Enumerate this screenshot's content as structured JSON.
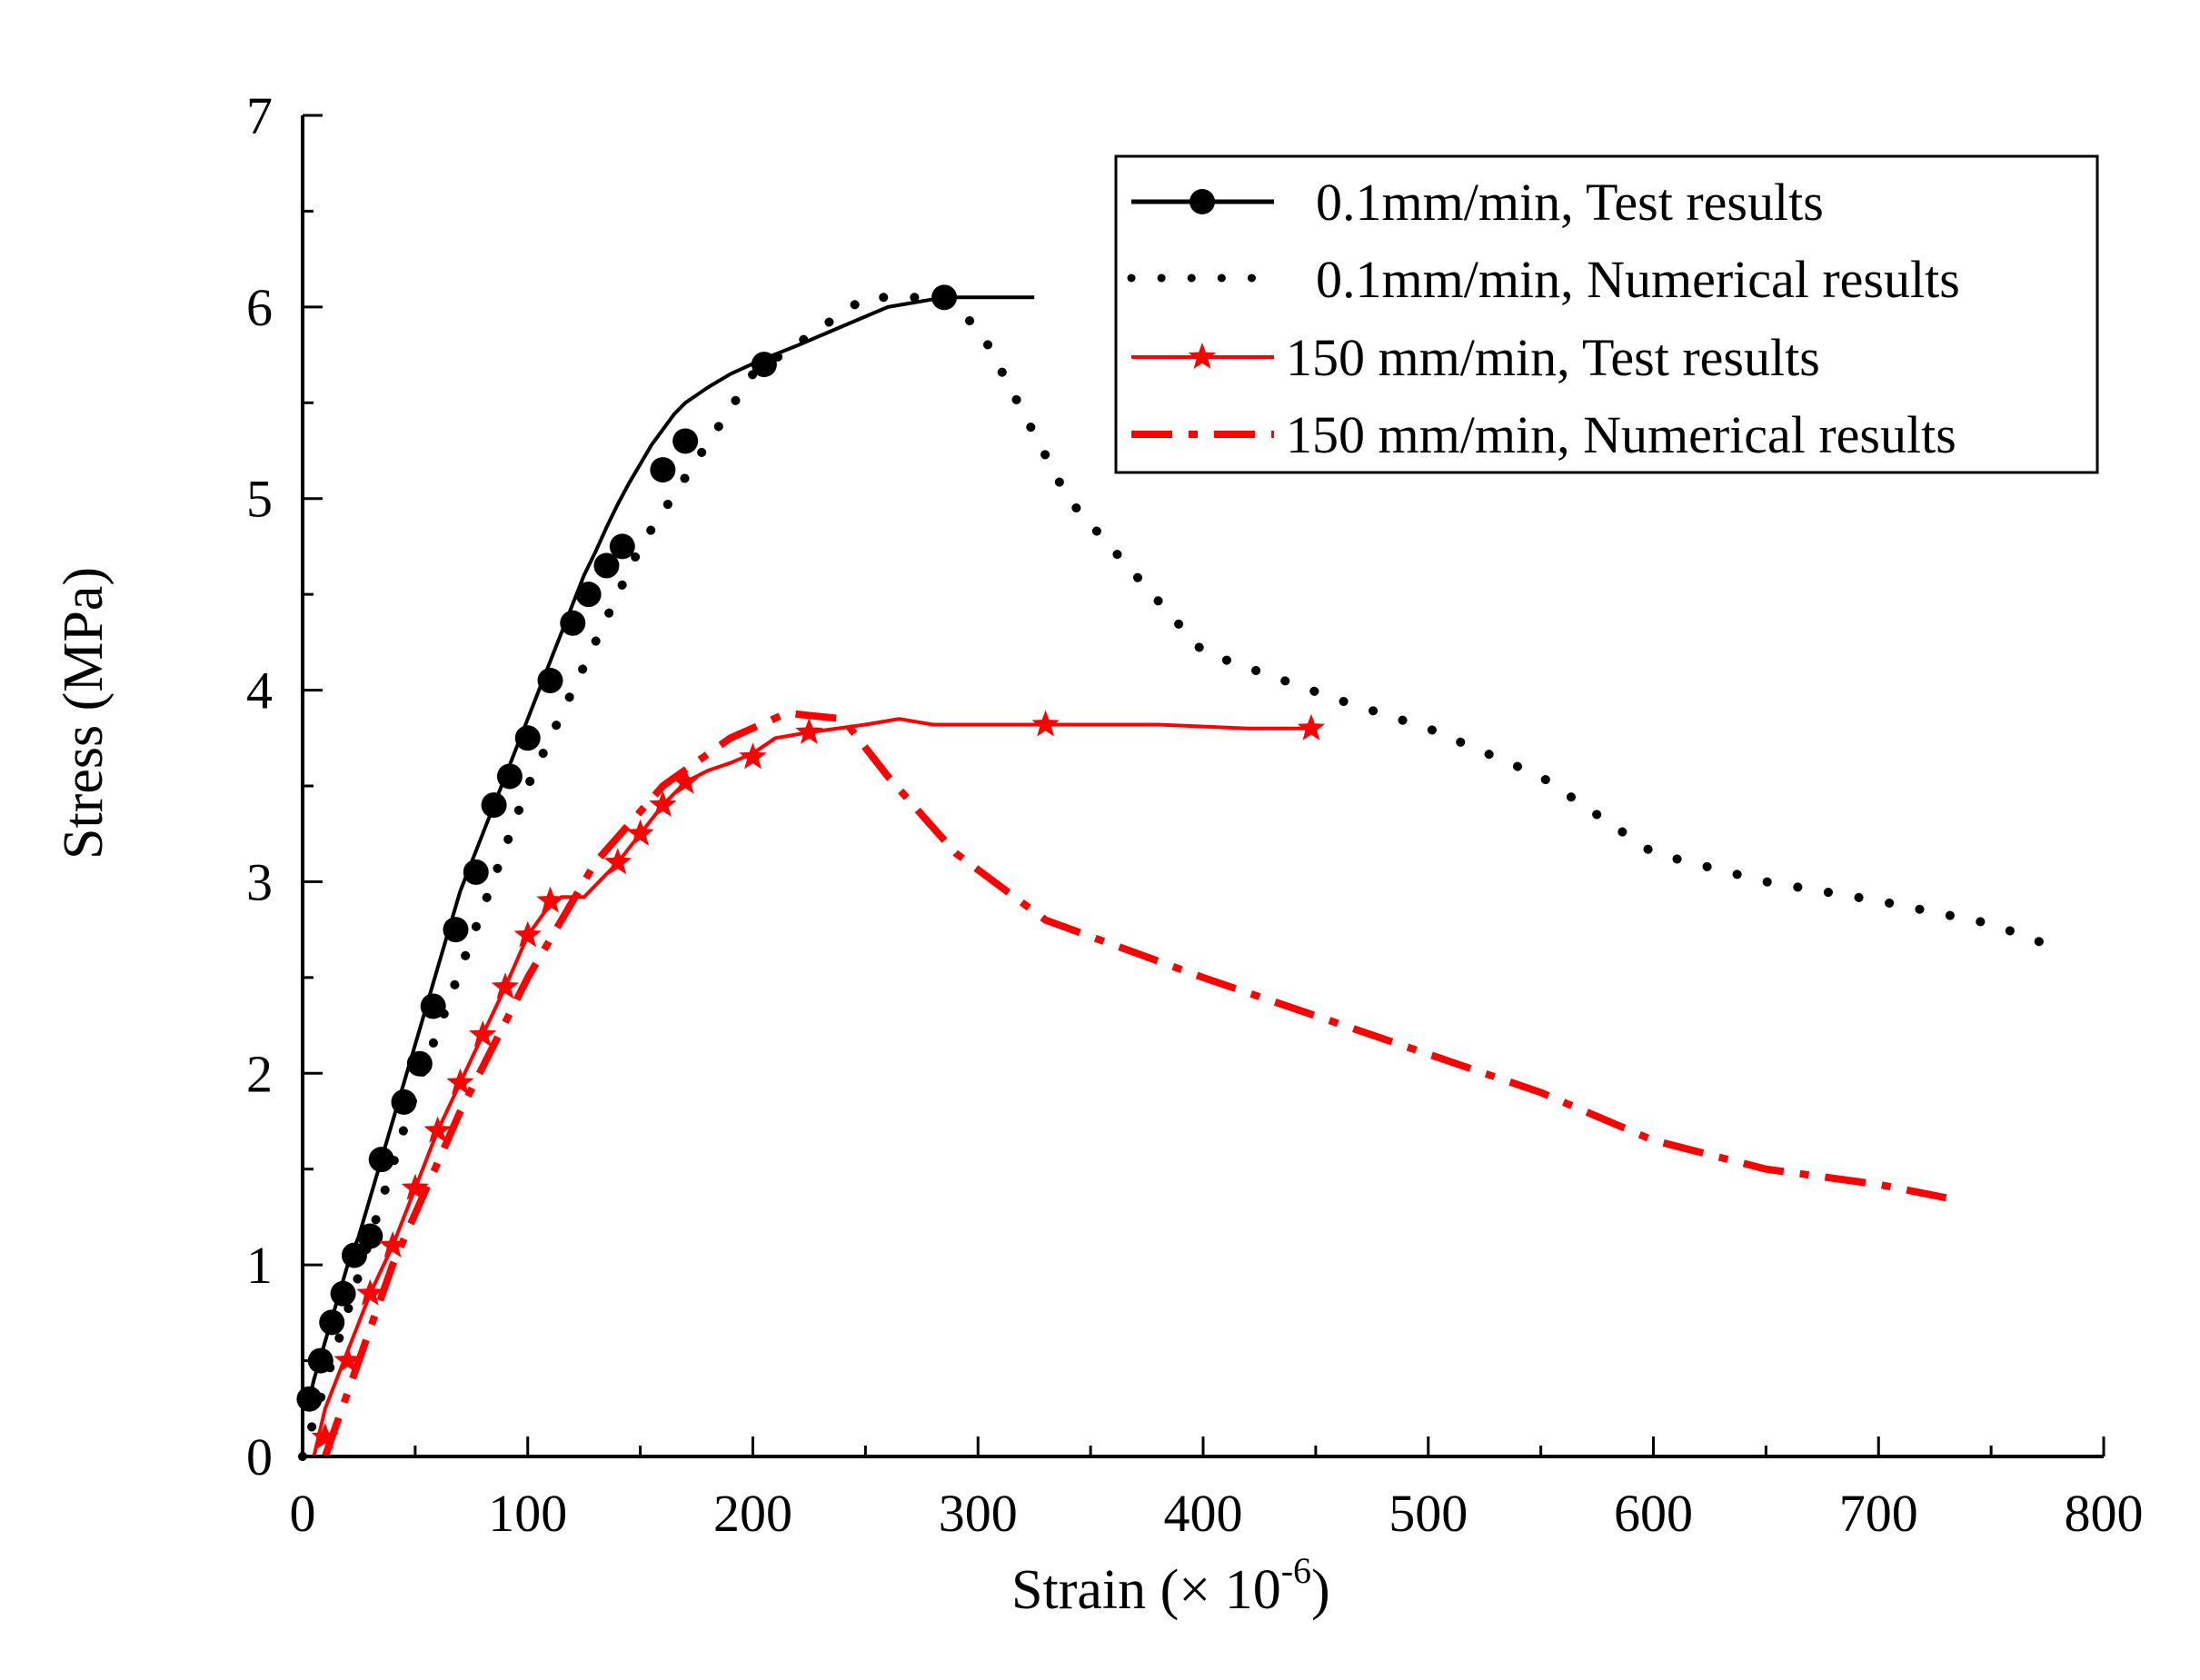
{
  "chart_data": {
    "type": "line",
    "title": "",
    "xlabel": "Strain (×  10",
    "xlabel_exp": "-6",
    "xlabel_close": ")",
    "ylabel": "Stress (MPa)",
    "xlim": [
      0,
      800
    ],
    "ylim": [
      0,
      7
    ],
    "x_ticks": [
      0,
      100,
      200,
      300,
      400,
      500,
      600,
      700,
      800
    ],
    "y_ticks": [
      0,
      1,
      2,
      3,
      4,
      5,
      6,
      7
    ],
    "legend_position": "top-right",
    "series": [
      {
        "name": "0.1mm/min, Test results",
        "color": "#000000",
        "style": "solid",
        "marker": "circle",
        "x": [
          2,
          5,
          10,
          15,
          20,
          25,
          30,
          35,
          40,
          45,
          50,
          55,
          60,
          65,
          70,
          75,
          80,
          85,
          90,
          95,
          100,
          105,
          110,
          115,
          120,
          125,
          130,
          135,
          140,
          145,
          150,
          155,
          160,
          165,
          170,
          180,
          190,
          203,
          220,
          240,
          260,
          285,
          300,
          325
        ],
        "y": [
          0.25,
          0.4,
          0.6,
          0.8,
          1.0,
          1.15,
          1.35,
          1.55,
          1.75,
          1.95,
          2.15,
          2.35,
          2.55,
          2.75,
          2.95,
          3.1,
          3.25,
          3.4,
          3.55,
          3.7,
          3.85,
          4.0,
          4.15,
          4.3,
          4.45,
          4.6,
          4.72,
          4.85,
          4.97,
          5.08,
          5.18,
          5.28,
          5.36,
          5.44,
          5.5,
          5.58,
          5.65,
          5.72,
          5.8,
          5.9,
          6.0,
          6.05,
          6.05,
          6.05
        ],
        "marker_x": [
          3,
          8,
          13,
          18,
          23,
          30,
          35,
          45,
          52,
          58,
          68,
          77,
          85,
          92,
          100,
          110,
          120,
          127,
          135,
          142,
          160,
          170,
          205,
          285
        ],
        "marker_y": [
          0.3,
          0.5,
          0.7,
          0.85,
          1.05,
          1.15,
          1.55,
          1.85,
          2.05,
          2.35,
          2.75,
          3.05,
          3.4,
          3.55,
          3.75,
          4.05,
          4.35,
          4.5,
          4.65,
          4.75,
          5.15,
          5.3,
          5.7,
          6.05
        ]
      },
      {
        "name": "0.1mm/min, Numerical results",
        "color": "#000000",
        "style": "dotted",
        "marker": "none",
        "x": [
          0,
          50,
          100,
          150,
          200,
          250,
          280,
          300,
          340,
          400,
          460,
          500,
          550,
          600,
          650,
          700,
          750,
          780
        ],
        "y": [
          0,
          1.9,
          3.5,
          4.75,
          5.65,
          6.05,
          6.05,
          5.9,
          5.0,
          4.2,
          3.95,
          3.8,
          3.55,
          3.15,
          3.0,
          2.9,
          2.78,
          2.65
        ]
      },
      {
        "name": "150 mm/min, Test results",
        "color": "#ff0000",
        "style": "solid",
        "marker": "star",
        "x": [
          5,
          10,
          20,
          30,
          40,
          50,
          60,
          70,
          80,
          90,
          100,
          108,
          115,
          125,
          130,
          140,
          150,
          160,
          170,
          180,
          190,
          200,
          210,
          225,
          250,
          265,
          280,
          330,
          380,
          420,
          448
        ],
        "y": [
          0.0,
          0.25,
          0.55,
          0.85,
          1.1,
          1.4,
          1.7,
          1.95,
          2.2,
          2.45,
          2.72,
          2.85,
          2.92,
          2.92,
          2.98,
          3.1,
          3.25,
          3.4,
          3.52,
          3.58,
          3.62,
          3.67,
          3.75,
          3.78,
          3.82,
          3.85,
          3.82,
          3.82,
          3.82,
          3.8,
          3.8
        ],
        "marker_x": [
          10,
          20,
          30,
          40,
          50,
          60,
          70,
          80,
          90,
          100,
          110,
          140,
          150,
          160,
          170,
          200,
          225,
          330,
          448
        ],
        "marker_y": [
          0.1,
          0.5,
          0.85,
          1.1,
          1.4,
          1.7,
          1.95,
          2.2,
          2.45,
          2.72,
          2.9,
          3.1,
          3.25,
          3.4,
          3.52,
          3.65,
          3.78,
          3.82,
          3.8
        ]
      },
      {
        "name": "150 mm/min, Numerical results",
        "color": "#ff0000",
        "style": "dashdot",
        "marker": "none",
        "x": [
          10,
          40,
          70,
          100,
          130,
          160,
          190,
          215,
          240,
          260,
          290,
          330,
          400,
          450,
          500,
          550,
          600,
          650,
          700,
          730
        ],
        "y": [
          0,
          1.0,
          1.8,
          2.5,
          3.1,
          3.5,
          3.75,
          3.88,
          3.85,
          3.55,
          3.15,
          2.8,
          2.5,
          2.3,
          2.1,
          1.9,
          1.65,
          1.5,
          1.42,
          1.35
        ]
      }
    ]
  }
}
